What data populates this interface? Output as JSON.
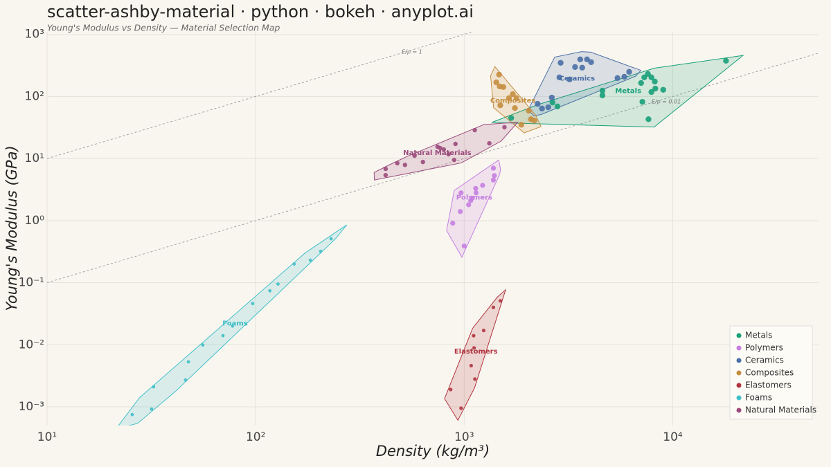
{
  "chart_data": {
    "type": "scatter",
    "title": "scatter-ashby-material · python · bokeh · anyplot.ai",
    "subtitle": "Young's Modulus vs Density — Material Selection Map",
    "x_label": "Density (kg/m³)",
    "y_label": "Young's Modulus (GPa)",
    "x_scale": "log",
    "y_scale": "log",
    "xlim": [
      10,
      50000
    ],
    "ylim": [
      0.0005,
      1100
    ],
    "xticks": [
      {
        "value": 10,
        "label": "10¹"
      },
      {
        "value": 100,
        "label": "10²"
      },
      {
        "value": 1000,
        "label": "10³"
      },
      {
        "value": 10000,
        "label": "10⁴"
      }
    ],
    "yticks": [
      {
        "value": 0.001,
        "label": "10⁻³"
      },
      {
        "value": 0.01,
        "label": "10⁻²"
      },
      {
        "value": 0.1,
        "label": "10⁻¹"
      },
      {
        "value": 1,
        "label": "10⁰"
      },
      {
        "value": 10,
        "label": "10¹"
      },
      {
        "value": 100,
        "label": "10²"
      },
      {
        "value": 1000,
        "label": "10³"
      }
    ],
    "grid": true,
    "legend": "bottom_right",
    "hulls": true,
    "guidelines": [
      {
        "label": "E/ρ = 1",
        "ratio": 1
      },
      {
        "label": "E/ρ = 0.01",
        "ratio": 0.01
      }
    ],
    "series": [
      {
        "name": "Metals",
        "color": "#17a078",
        "marker_size": 4.2,
        "x": [
          1680,
          2650,
          2800,
          4600,
          4600,
          7050,
          7300,
          7600,
          7900,
          8200,
          7900,
          8250,
          9000,
          7150,
          7650,
          18000
        ],
        "values": [
          45,
          80,
          69,
          124,
          104,
          165,
          203,
          231,
          203,
          174,
          118,
          134,
          128,
          82,
          43,
          376
        ]
      },
      {
        "name": "Polymers",
        "color": "#c57fe0",
        "marker_size": 3.6,
        "x": [
          1380,
          1395,
          1380,
          1225,
          1135,
          1140,
          1090,
          1075,
          1050,
          966,
          958,
          881,
          1000
        ],
        "values": [
          7.0,
          5.3,
          4.5,
          3.7,
          3.3,
          2.8,
          2.3,
          2.1,
          1.8,
          2.8,
          1.4,
          0.91,
          0.39
        ]
      },
      {
        "name": "Ceramics",
        "color": "#4a6fa5",
        "marker_size": 4.2,
        "x": [
          2900,
          3600,
          3880,
          4060,
          3400,
          3680,
          2860,
          3200,
          5430,
          5860,
          6180,
          2250,
          2360,
          2530,
          2630
        ],
        "values": [
          348,
          396,
          396,
          357,
          298,
          291,
          203,
          188,
          198,
          208,
          249,
          76,
          64,
          67,
          96
        ]
      },
      {
        "name": "Composites",
        "color": "#c58d3e",
        "marker_size": 4.2,
        "x": [
          1470,
          1425,
          1480,
          1540,
          1710,
          1780,
          1640,
          1750,
          1490,
          2040,
          2090,
          1880,
          2170
        ],
        "values": [
          225,
          169,
          145,
          142,
          109,
          94,
          94,
          65,
          72,
          59,
          43,
          35,
          41
        ]
      },
      {
        "name": "Elastomers",
        "color": "#b0343e",
        "marker_size": 2.6,
        "x": [
          1490,
          1380,
          1240,
          1110,
          1115,
          1080,
          1125,
          861,
          966
        ],
        "values": [
          0.051,
          0.04,
          0.017,
          0.014,
          0.0089,
          0.0046,
          0.0028,
          0.0019,
          0.00095
        ]
      },
      {
        "name": "Foams",
        "color": "#3fbfc9",
        "marker_size": 2.4,
        "x": [
          25.6,
          31.7,
          32.4,
          46.1,
          47.6,
          55.8,
          69.7,
          77.5,
          96.8,
          117,
          128,
          153,
          183,
          205,
          230
        ],
        "values": [
          0.00075,
          0.00092,
          0.0021,
          0.0027,
          0.0053,
          0.0099,
          0.014,
          0.02,
          0.046,
          0.074,
          0.095,
          0.2,
          0.23,
          0.32,
          0.51
        ]
      },
      {
        "name": "Natural Materials",
        "color": "#9b4a7b",
        "marker_size": 3.2,
        "x": [
          420,
          420,
          478,
          520,
          578,
          634,
          745,
          768,
          798,
          841,
          895,
          908,
          1124,
          1320,
          1560
        ],
        "values": [
          6.8,
          5.4,
          8.4,
          7.9,
          11.1,
          8.8,
          15.5,
          14.7,
          14.0,
          11.7,
          9.5,
          17.2,
          28.7,
          17.6,
          31.9
        ]
      }
    ]
  }
}
